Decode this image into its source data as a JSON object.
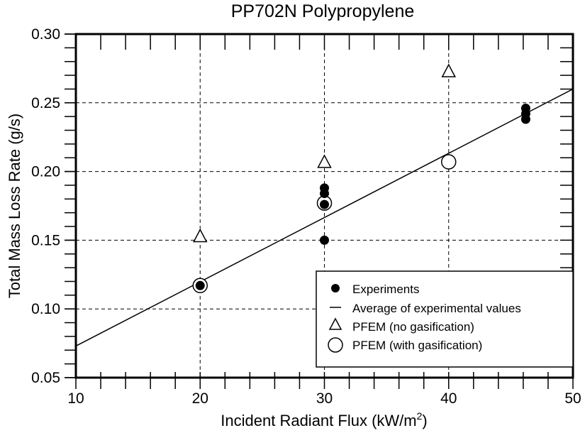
{
  "chart_data": {
    "type": "scatter",
    "title": "PP702N Polypropylene",
    "xlabel": "Incident Radiant Flux (kW/m2)",
    "xlabel_main": "Incident Radiant Flux (kW/m",
    "xlabel_sup": "2",
    "xlabel_close": ")",
    "ylabel": "Total Mass Loss Rate (g/s)",
    "xlim": [
      10,
      50
    ],
    "ylim": [
      0.05,
      0.3
    ],
    "x_ticks": [
      "10",
      "20",
      "30",
      "40",
      "50"
    ],
    "y_ticks": [
      "0.30",
      "0.25",
      "0.20",
      "0.15",
      "0.10",
      "0.05"
    ],
    "grid": "dashed, major ticks only",
    "legend_position": "lower right",
    "series": [
      {
        "name": "Experiments",
        "marker": "filled-circle",
        "points": [
          [
            20,
            0.117
          ],
          [
            30,
            0.188
          ],
          [
            30,
            0.184
          ],
          [
            30,
            0.176
          ],
          [
            30,
            0.15
          ],
          [
            46.2,
            0.246
          ],
          [
            46.2,
            0.242
          ],
          [
            46.2,
            0.238
          ]
        ]
      },
      {
        "name": "Average of experimental values",
        "marker": "line",
        "points": [
          [
            10,
            0.073
          ],
          [
            50,
            0.26
          ]
        ]
      },
      {
        "name": "PFEM (no gasification)",
        "marker": "open-triangle",
        "points": [
          [
            20,
            0.151
          ],
          [
            30,
            0.205
          ],
          [
            40,
            0.271
          ]
        ]
      },
      {
        "name": "PFEM (with gasification)",
        "marker": "open-circle",
        "points": [
          [
            20,
            0.117
          ],
          [
            30,
            0.177
          ],
          [
            40,
            0.207
          ]
        ]
      }
    ]
  },
  "legend": {
    "items": [
      {
        "label": "Experiments",
        "icon": "filled-circle"
      },
      {
        "label": "Average of experimental values",
        "icon": "line"
      },
      {
        "label": "PFEM (no gasification)",
        "icon": "open-triangle"
      },
      {
        "label": "PFEM (with gasification)",
        "icon": "open-circle"
      }
    ]
  }
}
